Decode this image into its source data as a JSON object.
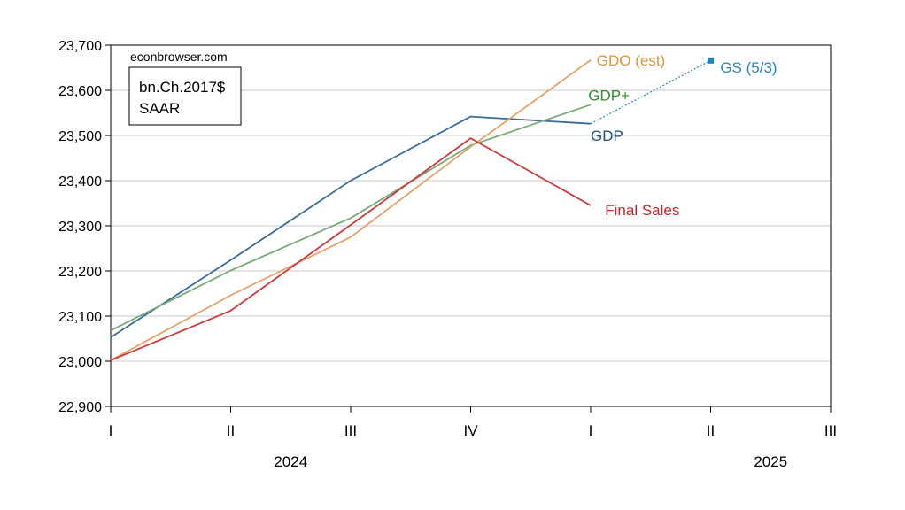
{
  "chart_data": {
    "type": "line",
    "watermark": "econbrowser.com",
    "units_box": [
      "bn.Ch.2017$",
      "SAAR"
    ],
    "x_ticks": [
      "I",
      "II",
      "III",
      "IV",
      "I",
      "II",
      "III"
    ],
    "year_labels": [
      {
        "label": "2024",
        "x": 1.5
      },
      {
        "label": "2025",
        "x": 5.5
      }
    ],
    "xlim": [
      0,
      6
    ],
    "ylim": [
      22900,
      23700
    ],
    "y_ticks": [
      22900,
      23000,
      23100,
      23200,
      23300,
      23400,
      23500,
      23600,
      23700
    ],
    "y_tick_labels": [
      "22,900",
      "23,000",
      "23,100",
      "23,200",
      "23,300",
      "23,400",
      "23,500",
      "23,600",
      "23,700"
    ],
    "grid": true,
    "series": [
      {
        "name": "GDP",
        "color": "#3b6b9a",
        "style": "solid",
        "x": [
          0,
          1,
          2,
          3,
          4
        ],
        "values": [
          23053,
          23224,
          23400,
          23542,
          23526
        ]
      },
      {
        "name": "GDP+",
        "color": "#7aaa7a",
        "style": "solid",
        "x": [
          0,
          1,
          2,
          3,
          4
        ],
        "values": [
          23068,
          23201,
          23317,
          23478,
          23568
        ]
      },
      {
        "name": "GDO (est)",
        "color": "#e3a26a",
        "style": "solid",
        "x": [
          0,
          1,
          2,
          3,
          4
        ],
        "values": [
          23002,
          23146,
          23275,
          23475,
          23667
        ]
      },
      {
        "name": "Final Sales",
        "color": "#cc3b3b",
        "style": "solid",
        "x": [
          0,
          1,
          2,
          3,
          4
        ],
        "values": [
          23002,
          23112,
          23302,
          23494,
          23345
        ]
      },
      {
        "name": "GS (5/3)",
        "color": "#2288bb",
        "style": "dotted",
        "marker": "square",
        "x": [
          4,
          5
        ],
        "values": [
          23526,
          23666
        ]
      }
    ],
    "labels": [
      {
        "series": "GDO (est)",
        "text": "GDO (est)",
        "color": "#d9963f",
        "x": 4.05,
        "y": 23667
      },
      {
        "series": "GDP+",
        "text": "GDP+",
        "color": "#2f8f2f",
        "x": 3.98,
        "y": 23589
      },
      {
        "series": "GDP",
        "text": "GDP",
        "color": "#1f4e80",
        "x": 4.0,
        "y": 23500
      },
      {
        "series": "Final Sales",
        "text": "Final Sales",
        "color": "#c0282d",
        "x": 4.12,
        "y": 23335
      },
      {
        "series": "GS (5/3)",
        "text": "GS (5/3)",
        "color": "#2288bb",
        "x": 5.08,
        "y": 23651
      }
    ]
  }
}
